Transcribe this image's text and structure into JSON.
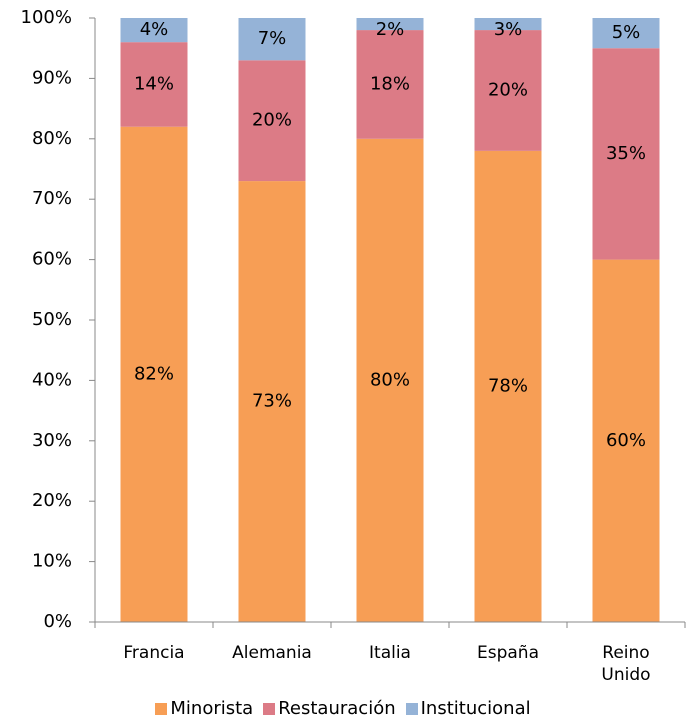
{
  "chart_data": {
    "type": "stacked_bar",
    "categories": [
      "Francia",
      "Alemania",
      "Italia",
      "España",
      "Reino Unido"
    ],
    "series": [
      {
        "name": "Minorista",
        "color": "#f79e55",
        "values": [
          82,
          73,
          80,
          78,
          60
        ],
        "value_labels": [
          "82%",
          "73%",
          "80%",
          "78%",
          "60%"
        ]
      },
      {
        "name": "Restauración",
        "color": "#dc7b86",
        "values": [
          14,
          20,
          18,
          20,
          35
        ],
        "value_labels": [
          "14%",
          "20%",
          "18%",
          "20%",
          "35%"
        ]
      },
      {
        "name": "Institucional",
        "color": "#95b3d7",
        "values": [
          4,
          7,
          2,
          3,
          5
        ],
        "value_labels": [
          "4%",
          "7%",
          "2%",
          "3%",
          "5%"
        ]
      }
    ],
    "ylim": [
      0,
      100
    ],
    "yticks": [
      {
        "value": 0,
        "label": "0%"
      },
      {
        "value": 10,
        "label": "10%"
      },
      {
        "value": 20,
        "label": "20%"
      },
      {
        "value": 30,
        "label": "30%"
      },
      {
        "value": 40,
        "label": "40%"
      },
      {
        "value": 50,
        "label": "50%"
      },
      {
        "value": 60,
        "label": "60%"
      },
      {
        "value": 70,
        "label": "70%"
      },
      {
        "value": 80,
        "label": "80%"
      },
      {
        "value": 90,
        "label": "90%"
      },
      {
        "value": 100,
        "label": "100%"
      }
    ],
    "grid": false,
    "legend": "bottom"
  }
}
